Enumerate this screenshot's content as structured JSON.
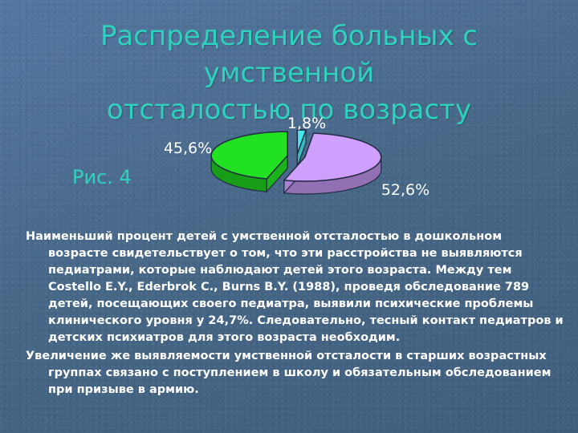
{
  "slide": {
    "title_line1": "Распределение больных с умственной",
    "title_line2": "отсталостью по возрасту",
    "figure_label": "Рис. 4",
    "paragraphs": [
      "Наименьший процент детей с умственной отсталостью в дошкольном возрасте свидетельствует о том, что эти расстройства не выявляются педиатрами, которые наблюдают детей этого возраста. Между тем Costello E.Y., Ederbrok C., Burns B.Y. (1988), проведя обследование 789 детей, посещающих своего педиатра, выявили психические проблемы клинического уровня у 24,7%. Следовательно, тесный контакт педиатров и детских психиатров для этого возраста необходим.",
      "Увеличение же выявляемости умственной отсталости в старших возрастных группах связано с поступлением в школу и обязательным обследованием при призыве в армию."
    ]
  },
  "chart_data": {
    "type": "pie",
    "values": [
      1.8,
      52.6,
      45.6
    ],
    "labels": [
      "1,8%",
      "52,6%",
      "45,6%"
    ],
    "colors": [
      "#44e6f0",
      "#cfa0ff",
      "#22e022"
    ]
  }
}
